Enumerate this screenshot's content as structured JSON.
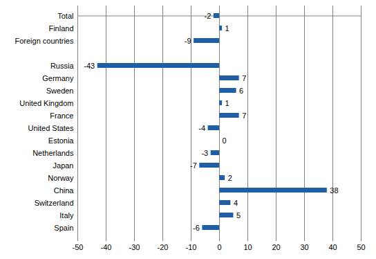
{
  "chart_data": {
    "type": "bar",
    "orientation": "horizontal",
    "categories": [
      "Total",
      "Finland",
      "Foreign countries",
      null,
      "Russia",
      "Germany",
      "Sweden",
      "United Kingdom",
      "France",
      "United States",
      "Estonia",
      "Netherlands",
      "Japan",
      "Norway",
      "China",
      "Switzerland",
      "Italy",
      "Spain"
    ],
    "values": [
      -2,
      1,
      -9,
      null,
      -43,
      7,
      6,
      1,
      7,
      -4,
      0,
      -3,
      -7,
      2,
      38,
      4,
      5,
      -6
    ],
    "color": "#1f5fa6",
    "xlim": [
      -50,
      50
    ],
    "xticks": [
      -50,
      -40,
      -30,
      -20,
      -10,
      0,
      10,
      20,
      30,
      40,
      50
    ],
    "grid": true,
    "data_labels": true
  }
}
